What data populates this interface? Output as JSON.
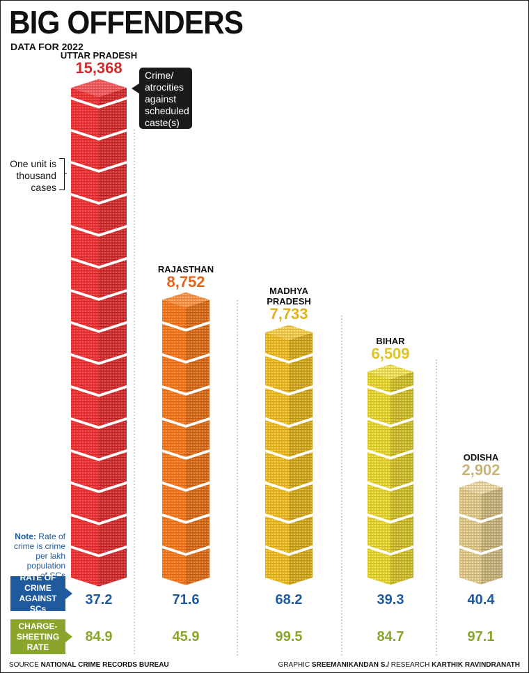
{
  "title": "BIG OFFENDERS",
  "subtitle": "DATA FOR 2022",
  "callout": [
    "Crime/",
    "atrocities",
    "against",
    "scheduled",
    "caste(s)"
  ],
  "unit_note": [
    "One unit is",
    "thousand",
    "cases"
  ],
  "note": {
    "label": "Note:",
    "lines": [
      "Rate of",
      "crime is crime",
      "per lakh",
      "population",
      "of SCs"
    ],
    "inline_first": "Rate of"
  },
  "rate_label": [
    "RATE OF",
    "CRIME",
    "AGAINST SCs"
  ],
  "charge_label": [
    "CHARGE-",
    "SHEETING",
    "RATE"
  ],
  "footer": {
    "source_prefix": "SOURCE",
    "source": "NATIONAL CRIME RECORDS BUREAU",
    "graphic_prefix": "GRAPHIC",
    "graphic": "SREEMANIKANDAN S./",
    "research_prefix": "RESEARCH",
    "research": "KARTHIK RAVINDRANATH"
  },
  "chart_data": {
    "type": "bar",
    "title": "BIG OFFENDERS",
    "subtitle": "DATA FOR 2022",
    "unit": "One unit is thousand cases",
    "categories": [
      "UTTAR PRADESH",
      "RAJASTHAN",
      "MADHYA PRADESH",
      "BIHAR",
      "ODISHA"
    ],
    "category_lines": [
      [
        "UTTAR PRADESH"
      ],
      [
        "RAJASTHAN"
      ],
      [
        "MADHYA",
        "PRADESH"
      ],
      [
        "BIHAR"
      ],
      [
        "ODISHA"
      ]
    ],
    "values": [
      15368,
      8752,
      7733,
      6509,
      2902
    ],
    "value_labels": [
      "15,368",
      "8,752",
      "7,733",
      "6,509",
      "2,902"
    ],
    "colors": [
      "#e8383a",
      "#f07a24",
      "#e8b82a",
      "#e3cf36",
      "#d9c48a"
    ],
    "label_colors": [
      "#d22b2b",
      "#e2641a",
      "#e0b21e",
      "#e0c424",
      "#c8b47a"
    ],
    "rate_of_crime": [
      37.2,
      71.6,
      68.2,
      39.3,
      40.4
    ],
    "rate_of_crime_labels": [
      "37.2",
      "71.6",
      "68.2",
      "39.3",
      "40.4"
    ],
    "charge_sheeting_rate": [
      84.9,
      45.9,
      99.5,
      84.7,
      97.1
    ],
    "charge_sheeting_labels": [
      "84.9",
      "45.9",
      "99.5",
      "84.7",
      "97.1"
    ]
  }
}
